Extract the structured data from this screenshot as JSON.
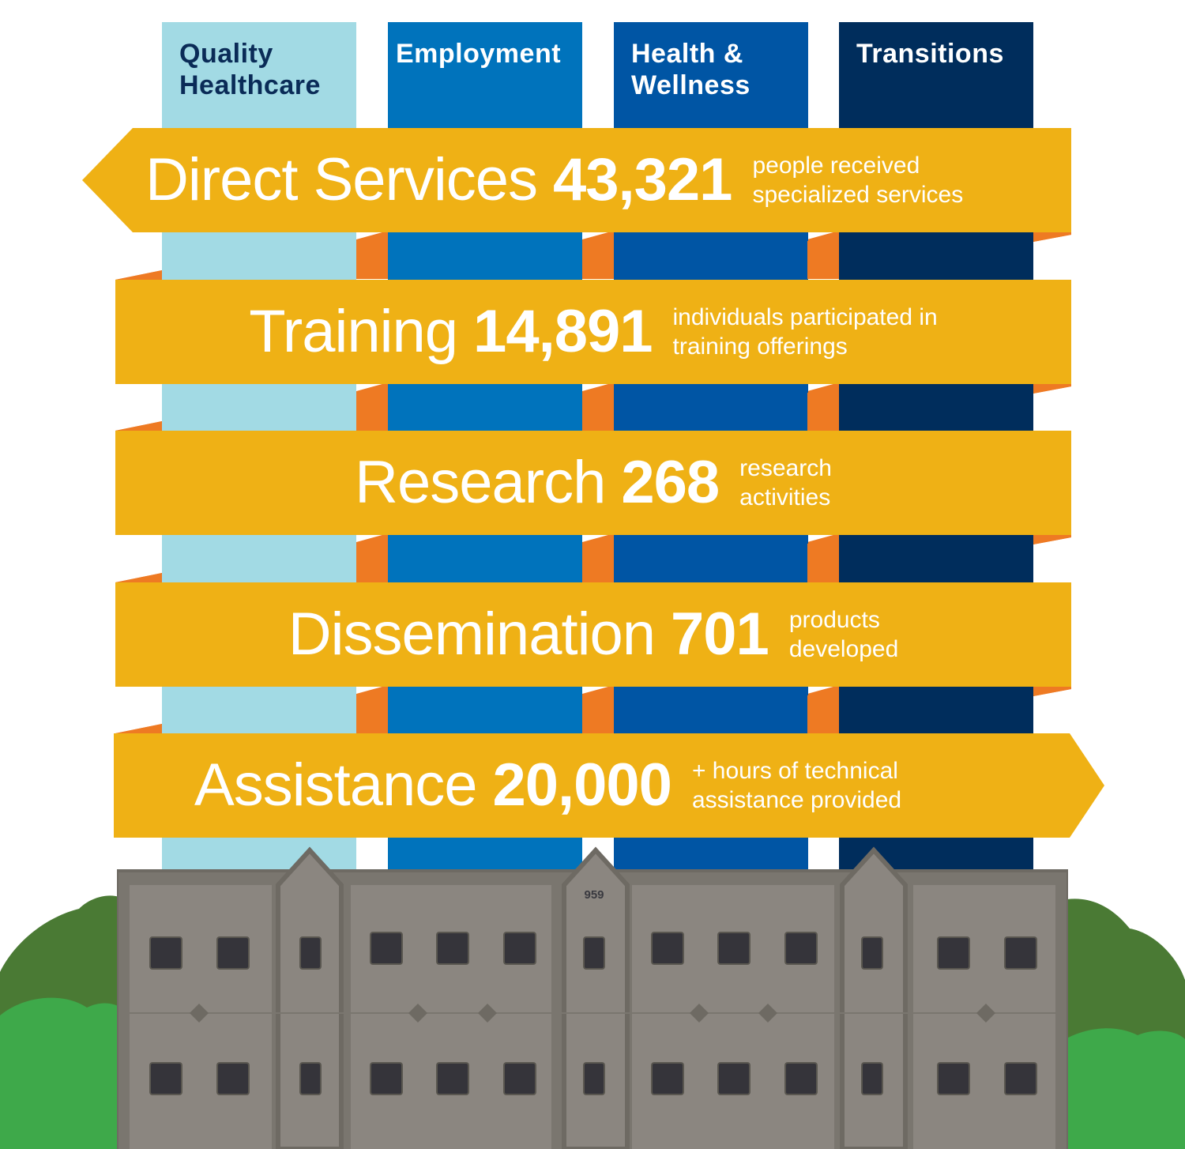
{
  "pillars": [
    {
      "title": "Quality Healthcare",
      "lines": [
        "Quality",
        "Healthcare"
      ],
      "color": "#a2dae4"
    },
    {
      "title": "Employment",
      "lines": [
        "Employment"
      ],
      "color": "#0073bc"
    },
    {
      "title": "Health & Wellness",
      "lines": [
        "Health &",
        "Wellness"
      ],
      "color": "#0055a4"
    },
    {
      "title": "Transitions",
      "lines": [
        "Transitions"
      ],
      "color": "#002d5c"
    }
  ],
  "banners": [
    {
      "label": "Direct Services",
      "number": "43,321",
      "desc_line1": "people received",
      "desc_line2": "specialized services"
    },
    {
      "label": "Training",
      "number": "14,891",
      "desc_line1": "individuals participated in",
      "desc_line2": "training offerings"
    },
    {
      "label": "Research",
      "number": "268",
      "desc_line1": "research",
      "desc_line2": "activities"
    },
    {
      "label": "Dissemination",
      "number": "701",
      "desc_line1": "products",
      "desc_line2": "developed"
    },
    {
      "label": "Assistance",
      "number": "20,000",
      "desc_line1": "+ hours of technical",
      "desc_line2": "assistance provided"
    }
  ],
  "building": {
    "number": "959"
  },
  "colors": {
    "ribbon": "#efb115",
    "ribbon_fold": "#ee7a23",
    "building": "#8b8680",
    "trees_dark": "#4a7a34",
    "trees_light": "#3ea94a"
  }
}
